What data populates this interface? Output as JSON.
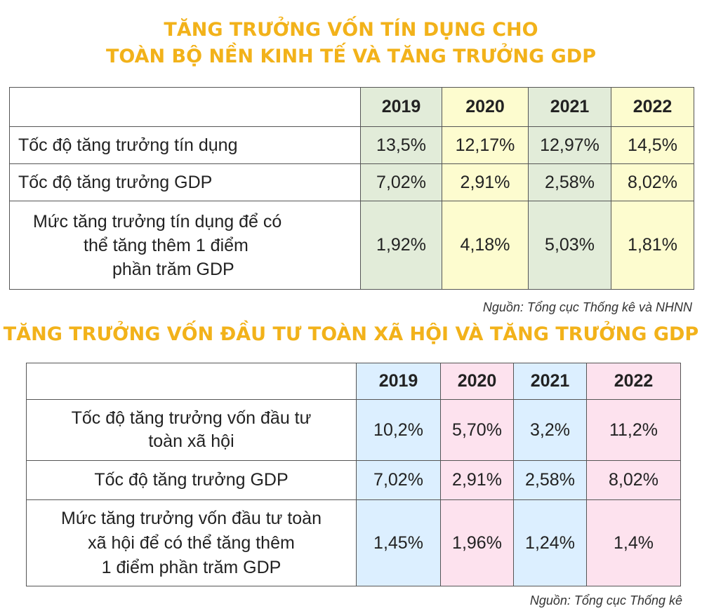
{
  "chart_data": [
    {
      "type": "table",
      "title_lines": [
        "TĂNG TRƯỞNG VỐN TÍN DỤNG CHO",
        "TOÀN BỘ NỀN KINH TẾ VÀ TĂNG TRƯỞNG GDP"
      ],
      "columns": [
        "2019",
        "2020",
        "2021",
        "2022"
      ],
      "column_colors": [
        "#e2ecd9",
        "#fdfccf",
        "#e2ecd9",
        "#fdfccf"
      ],
      "rows": [
        {
          "label_lines": [
            "Tốc độ tăng trưởng tín dụng"
          ],
          "values": [
            "13,5%",
            "12,17%",
            "12,97%",
            "14,5%"
          ]
        },
        {
          "label_lines": [
            "Tốc độ tăng trưởng GDP"
          ],
          "values": [
            "7,02%",
            "2,91%",
            "2,58%",
            "8,02%"
          ]
        },
        {
          "label_lines": [
            "Mức tăng trưởng tín dụng để có",
            "thể tăng thêm 1 điểm",
            "phần trăm GDP"
          ],
          "values": [
            "1,92%",
            "4,18%",
            "5,03%",
            "1,81%"
          ]
        }
      ],
      "source": "Nguồn: Tổng cục Thống kê và NHNN"
    },
    {
      "type": "table",
      "title_lines": [
        "TĂNG TRƯỞNG VỐN ĐẦU TƯ TOÀN XÃ HỘI VÀ TĂNG TRƯỞNG GDP"
      ],
      "columns": [
        "2019",
        "2020",
        "2021",
        "2022"
      ],
      "column_colors": [
        "#dcefff",
        "#fde2ee",
        "#dcefff",
        "#fde2ee"
      ],
      "rows": [
        {
          "label_lines": [
            "Tốc độ tăng trưởng vốn đầu tư",
            "toàn xã hội"
          ],
          "values": [
            "10,2%",
            "5,70%",
            "3,2%",
            "11,2%"
          ]
        },
        {
          "label_lines": [
            "Tốc độ tăng trưởng GDP"
          ],
          "values": [
            "7,02%",
            "2,91%",
            "2,58%",
            "8,02%"
          ]
        },
        {
          "label_lines": [
            "Mức tăng trưởng vốn đầu tư toàn",
            "xã hội để có thể tăng thêm",
            "1 điểm phần trăm GDP"
          ],
          "values": [
            "1,45%",
            "1,96%",
            "1,24%",
            "1,4%"
          ]
        }
      ],
      "source": "Nguồn: Tổng cục Thống kê"
    }
  ]
}
